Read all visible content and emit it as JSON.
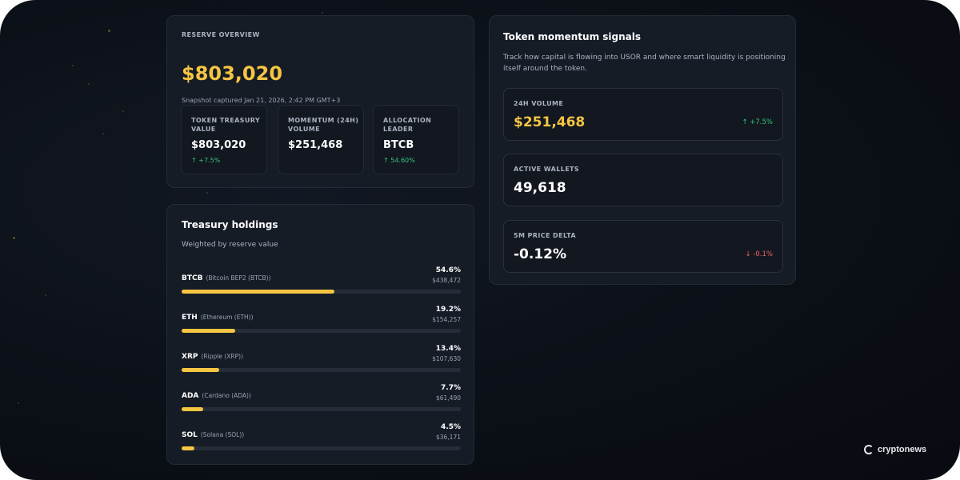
{
  "reserve": {
    "label": "RESERVE OVERVIEW",
    "total": "$803,020",
    "snapshot": "Snapshot captured Jan 21, 2026, 2:42 PM GMT+3",
    "stats": [
      {
        "label": "TOKEN TREASURY VALUE",
        "value": "$803,020",
        "change": "↑ +7.5%"
      },
      {
        "label": "MOMENTUM (24H) VOLUME",
        "value": "$251,468",
        "change": ""
      },
      {
        "label": "ALLOCATION LEADER",
        "value": "BTCB",
        "change": "↑ 54.60%"
      }
    ]
  },
  "holdings": {
    "title": "Treasury holdings",
    "subtitle": "Weighted by reserve value",
    "items": [
      {
        "symbol": "BTCB",
        "name": "(Bitcoin BEP2 (BTCB))",
        "percent": "54.6%",
        "usd": "$438,472",
        "share": 54.6
      },
      {
        "symbol": "ETH",
        "name": "(Ethereum (ETH))",
        "percent": "19.2%",
        "usd": "$154,257",
        "share": 19.2
      },
      {
        "symbol": "XRP",
        "name": "(Ripple (XRP))",
        "percent": "13.4%",
        "usd": "$107,630",
        "share": 13.4
      },
      {
        "symbol": "ADA",
        "name": "(Cardano (ADA))",
        "percent": "7.7%",
        "usd": "$61,490",
        "share": 7.7
      },
      {
        "symbol": "SOL",
        "name": "(Solana (SOL))",
        "percent": "4.5%",
        "usd": "$36,171",
        "share": 4.5
      }
    ]
  },
  "momentum": {
    "title": "Token momentum signals",
    "description": "Track how capital is flowing into USOR and where smart liquidity is positioning itself around the token.",
    "signals": [
      {
        "label": "24H VOLUME",
        "value": "$251,468",
        "change": "↑ +7.5%"
      },
      {
        "label": "ACTIVE WALLETS",
        "value": "49,618",
        "change": ""
      },
      {
        "label": "5M PRICE DELTA",
        "value": "-0.12%",
        "change": "↓ -0.1%"
      }
    ]
  },
  "watermark": {
    "text": "cryptonews"
  },
  "colors": {
    "accent": "#f5c542",
    "positive": "#35c77a",
    "negative": "#f06464",
    "background": "#0b0f16"
  }
}
